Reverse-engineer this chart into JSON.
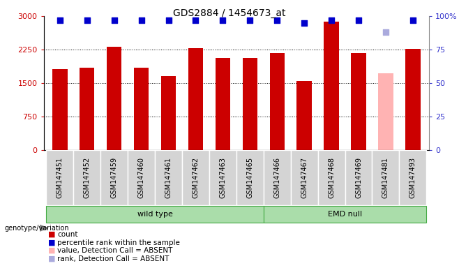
{
  "title": "GDS2884 / 1454673_at",
  "samples": [
    "GSM147451",
    "GSM147452",
    "GSM147459",
    "GSM147460",
    "GSM147461",
    "GSM147462",
    "GSM147463",
    "GSM147465",
    "GSM147466",
    "GSM147467",
    "GSM147468",
    "GSM147469",
    "GSM147481",
    "GSM147493"
  ],
  "counts": [
    1820,
    1850,
    2310,
    1850,
    1660,
    2280,
    2060,
    2060,
    2180,
    1540,
    2870,
    2180,
    1720,
    2270
  ],
  "absent_mask": [
    false,
    false,
    false,
    false,
    false,
    false,
    false,
    false,
    false,
    false,
    false,
    false,
    true,
    false
  ],
  "percentile_ranks": [
    97,
    97,
    97,
    97,
    97,
    97,
    97,
    97,
    97,
    95,
    97,
    97,
    88,
    97
  ],
  "absent_rank_mask": [
    false,
    false,
    false,
    false,
    false,
    false,
    false,
    false,
    false,
    false,
    false,
    false,
    true,
    false
  ],
  "ylim_left": [
    0,
    3000
  ],
  "ylim_right": [
    0,
    100
  ],
  "yticks_left": [
    0,
    750,
    1500,
    2250,
    3000
  ],
  "yticks_right": [
    0,
    25,
    50,
    75,
    100
  ],
  "bar_color_present": "#cc0000",
  "bar_color_absent": "#ffb3b3",
  "dot_color_present": "#0000cc",
  "dot_color_absent": "#aaaadd",
  "wild_type_count": 8,
  "emd_null_count": 6,
  "group_label_wt": "wild type",
  "group_label_emd": "EMD null",
  "group_color": "#aaddaa",
  "group_border_color": "#44aa44",
  "ylabel_left_color": "#cc0000",
  "ylabel_right_color": "#3333cc",
  "tick_label_size": 7,
  "title_size": 10,
  "bar_width": 0.55,
  "dot_size": 30,
  "background_color": "#ffffff",
  "genotype_label": "genotype/variation"
}
